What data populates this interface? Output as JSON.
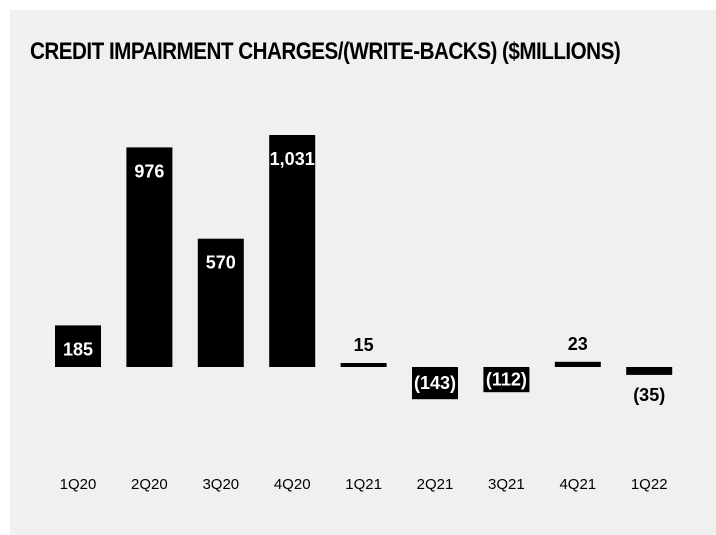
{
  "chart_data": {
    "type": "bar",
    "title": "CREDIT IMPAIRMENT CHARGES/(WRITE-BACKS) ($MILLIONS)",
    "categories": [
      "1Q20",
      "2Q20",
      "3Q20",
      "4Q20",
      "1Q21",
      "2Q21",
      "3Q21",
      "4Q21",
      "1Q22"
    ],
    "values": [
      185,
      976,
      570,
      1031,
      15,
      -143,
      -112,
      23,
      -35
    ],
    "data_labels": [
      "185",
      "976",
      "570",
      "1,031",
      "15",
      "(143)",
      "(112)",
      "23",
      "(35)"
    ],
    "xlabel": "",
    "ylabel": "",
    "grid": false,
    "legend": "none",
    "colors": {
      "bar": "#000000",
      "label_inside": "#ffffff",
      "label_outside": "#000000",
      "background": "#f0f0f0"
    }
  }
}
